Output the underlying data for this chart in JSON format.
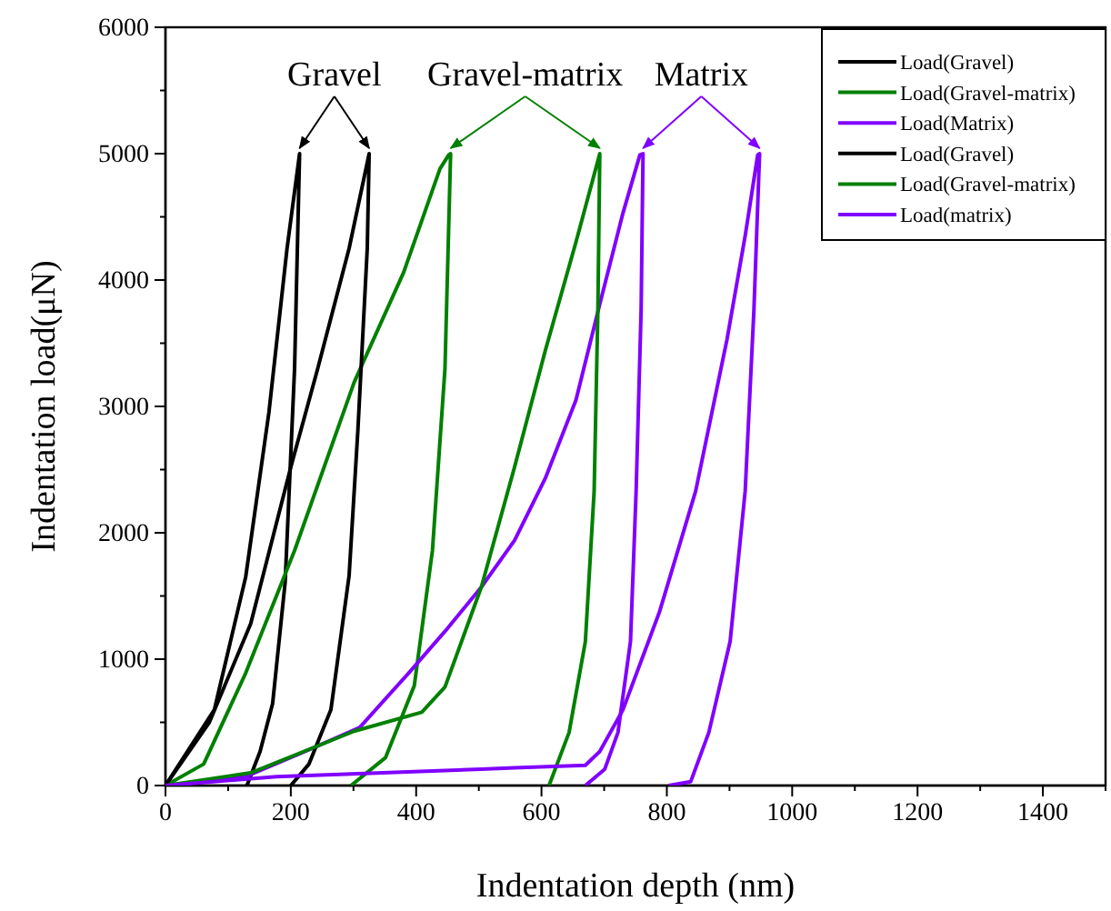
{
  "chart_data": {
    "type": "line",
    "xlabel": "Indentation depth (nm)",
    "ylabel": "Indentation load(μN)",
    "xlim": [
      0,
      1500
    ],
    "ylim": [
      0,
      6000
    ],
    "xticks": [
      0,
      {
        "value": 100,
        "label": null
      },
      200,
      {
        "value": 300,
        "label": null
      },
      400,
      {
        "value": 500,
        "label": null
      },
      600,
      {
        "value": 700,
        "label": null
      },
      800,
      {
        "value": 900,
        "label": null
      },
      1000,
      {
        "value": 1100,
        "label": null
      },
      1200,
      {
        "value": 1300,
        "label": null
      },
      1400,
      {
        "value": 1500,
        "label": null
      }
    ],
    "yticks": [
      0,
      {
        "value": 500,
        "label": null
      },
      1000,
      {
        "value": 1500,
        "label": null
      },
      2000,
      {
        "value": 2500,
        "label": null
      },
      3000,
      {
        "value": 3500,
        "label": null
      },
      4000,
      {
        "value": 4500,
        "label": null
      },
      5000,
      {
        "value": 5500,
        "label": null
      },
      6000
    ],
    "legend": "top right",
    "grid": false,
    "marker": "none",
    "line_style": "solid",
    "annotations": [
      {
        "text": "Gravel",
        "x": 214,
        "y": 5000
      },
      {
        "text": "Gravel-matrix",
        "x": 455,
        "y": 5000
      },
      {
        "text": "Matrix",
        "x": 762,
        "y": 5000
      }
    ],
    "series": [
      {
        "name": "Load(Gravel)",
        "color": "#000000",
        "x": [
          0,
          78,
          128,
          165,
          194,
          214,
          206,
          191,
          171,
          151,
          130
        ],
        "values": [
          0,
          600,
          1650,
          2950,
          4250,
          5000,
          3300,
          1610,
          650,
          270,
          0
        ]
      },
      {
        "name": "Load(Gravel-matrix)",
        "color": "#008000",
        "x": [
          0,
          61,
          128,
          206,
          301,
          380,
          438,
          452,
          455,
          446,
          426,
          397,
          351,
          296
        ],
        "values": [
          0,
          170,
          890,
          1860,
          3190,
          4060,
          4880,
          4990,
          5000,
          3300,
          1860,
          790,
          220,
          0
        ]
      },
      {
        "name": "Load(Matrix)",
        "color": "#8000ff",
        "x": [
          0,
          128,
          223,
          310,
          388,
          446,
          504,
          557,
          606,
          655,
          693,
          730,
          757,
          762,
          759,
          751,
          742,
          722,
          701,
          670
        ],
        "values": [
          0,
          70,
          270,
          460,
          890,
          1220,
          1570,
          1940,
          2430,
          3050,
          3810,
          4530,
          4990,
          5000,
          3770,
          2330,
          1140,
          420,
          130,
          0
        ]
      },
      {
        "name": "Load(Gravel)",
        "color": "#000000",
        "x": [
          0,
          70,
          136,
          200,
          243,
          293,
          325,
          322,
          307,
          293,
          264,
          229,
          200
        ],
        "values": [
          0,
          500,
          1280,
          2520,
          3300,
          4250,
          5000,
          4250,
          2810,
          1660,
          600,
          170,
          0
        ]
      },
      {
        "name": "Load(Gravel-matrix)",
        "color": "#008000",
        "x": [
          0,
          136,
          301,
          409,
          446,
          504,
          557,
          606,
          655,
          693,
          690,
          684,
          670,
          644,
          612
        ],
        "values": [
          0,
          100,
          430,
          580,
          780,
          1570,
          2520,
          3440,
          4300,
          5000,
          3770,
          2330,
          1140,
          420,
          0
        ]
      },
      {
        "name": "Load(matrix)",
        "color": "#8000ff",
        "x": [
          0,
          177,
          504,
          557,
          670,
          693,
          730,
          788,
          846,
          896,
          925,
          945,
          948,
          939,
          925,
          901,
          867,
          838,
          803
        ],
        "values": [
          0,
          70,
          130,
          140,
          160,
          270,
          600,
          1370,
          2330,
          3530,
          4350,
          4990,
          5000,
          3770,
          2330,
          1140,
          420,
          30,
          0
        ]
      }
    ]
  }
}
